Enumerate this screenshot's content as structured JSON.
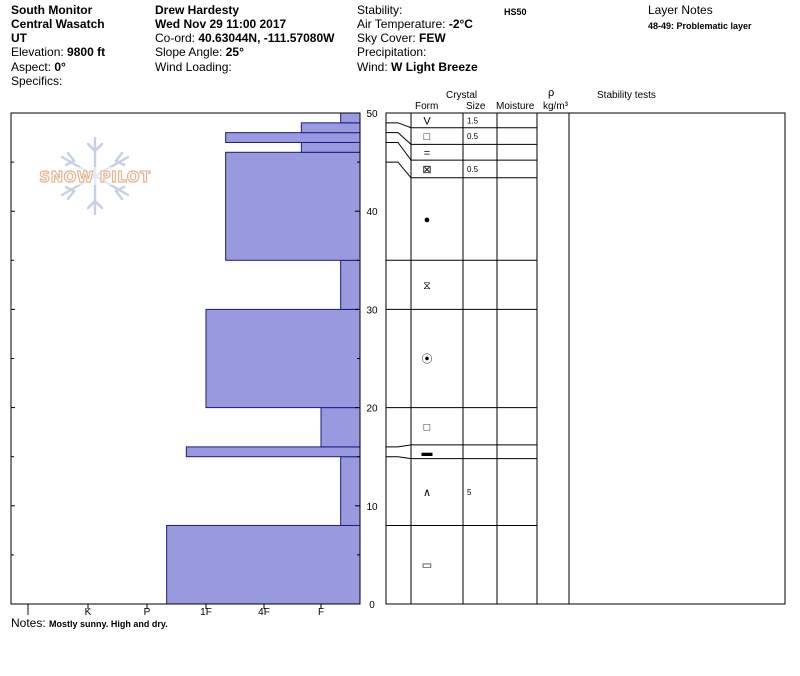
{
  "header": {
    "location": "South Monitor",
    "range": "Central Wasatch",
    "state": "UT",
    "elevation_label": "Elevation:",
    "elevation_value": "9800 ft",
    "aspect_label": "Aspect:",
    "aspect_value": "0°",
    "specifics_label": "Specifics:",
    "observer": "Drew Hardesty",
    "datetime": "Wed Nov 29 11:00 2017",
    "coord_label": "Co-ord:",
    "coord_value": "40.63044N, -111.57080W",
    "slope_label": "Slope Angle:",
    "slope_value": "25°",
    "wind_loading_label": "Wind Loading:",
    "stability_label": "Stability:",
    "air_temp_label": "Air Temperature:",
    "air_temp_value": "-2°C",
    "sky_label": "Sky Cover:",
    "sky_value": "FEW",
    "precip_label": "Precipitation:",
    "wind_label": "Wind:",
    "wind_value": "W Light Breeze",
    "hs": "HS50",
    "layer_notes_title": "Layer Notes",
    "layer_note": "48-49: Problematic layer"
  },
  "logo_text": "SNOW PILOT",
  "columns": {
    "crystal": "Crystal",
    "form": "Form",
    "size": "Size",
    "moisture": "Moisture",
    "rho": "ρ",
    "density_unit": "kg/m³",
    "stability_tests": "Stability tests"
  },
  "notes": {
    "label": "Notes:",
    "text": "Mostly sunny.  High and dry."
  },
  "colors": {
    "bar_fill": "#9999dd",
    "bar_stroke": "#1a1a88"
  },
  "chart_data": {
    "type": "bar",
    "orientation": "horizontal",
    "y_axis_label": "",
    "ylim": [
      0,
      50
    ],
    "y_ticks": [
      0,
      10,
      20,
      30,
      40,
      50
    ],
    "hardness_scale": [
      "I",
      "K",
      "P",
      "1F",
      "4F",
      "F"
    ],
    "layers": [
      {
        "bottom": 0,
        "top": 8,
        "hardness": "P+"
      },
      {
        "bottom": 8,
        "top": 15,
        "hardness": "F+"
      },
      {
        "bottom": 15,
        "top": 16,
        "hardness": "1F-"
      },
      {
        "bottom": 16,
        "top": 20,
        "hardness": "F"
      },
      {
        "bottom": 20,
        "top": 30,
        "hardness": "1F"
      },
      {
        "bottom": 30,
        "top": 35,
        "hardness": "F+"
      },
      {
        "bottom": 35,
        "top": 46,
        "hardness": "1F+"
      },
      {
        "bottom": 46,
        "top": 47,
        "hardness": "F-"
      },
      {
        "bottom": 47,
        "top": 48,
        "hardness": "1F+"
      },
      {
        "bottom": 48,
        "top": 49,
        "hardness": "F-"
      },
      {
        "bottom": 49,
        "top": 50,
        "hardness": "F+"
      }
    ],
    "profile_rows": [
      {
        "top": 50,
        "bottom": 48.5,
        "bottom_left": 49,
        "form": "V",
        "size": "1.5"
      },
      {
        "top": 48.5,
        "bottom": 46.8,
        "bottom_left": 48,
        "form": "□",
        "size": "0.5"
      },
      {
        "top": 46.8,
        "bottom": 45.2,
        "bottom_left": 47,
        "form": "=",
        "size": ""
      },
      {
        "top": 45.2,
        "bottom": 43.4,
        "bottom_left": 45,
        "form": "⊠",
        "size": "0.5"
      },
      {
        "top": 43.4,
        "bottom": 35,
        "bottom_left": 35,
        "form": "●",
        "size": ""
      },
      {
        "top": 35,
        "bottom": 30,
        "bottom_left": 30,
        "form": "⧖",
        "size": ""
      },
      {
        "top": 30,
        "bottom": 20,
        "bottom_left": 20,
        "form": "⦿",
        "size": ""
      },
      {
        "top": 20,
        "bottom": 16.2,
        "bottom_left": 16,
        "form": "□",
        "size": ""
      },
      {
        "top": 16.2,
        "bottom": 14.8,
        "bottom_left": 15,
        "form": "▬",
        "size": ""
      },
      {
        "top": 14.8,
        "bottom": 8,
        "bottom_left": 8,
        "form": "∧",
        "size": "5"
      },
      {
        "top": 8,
        "bottom": 0,
        "bottom_left": 0,
        "form": "▭",
        "size": ""
      }
    ]
  }
}
